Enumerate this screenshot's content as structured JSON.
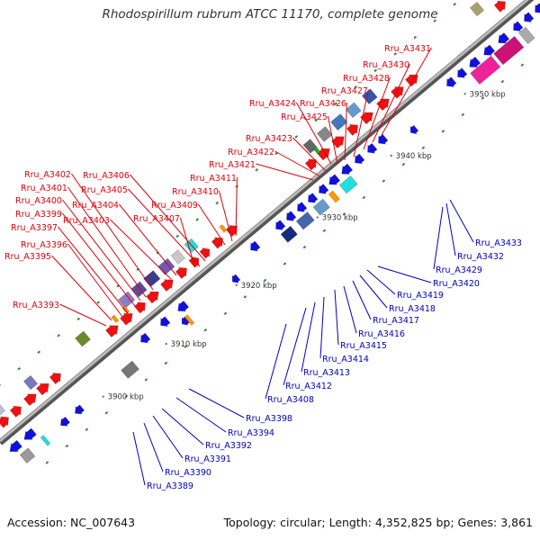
{
  "header": {
    "title": "Rhodospirillum rubrum ATCC 11170, complete genome"
  },
  "footer": {
    "accession": "Accession: NC_007643",
    "topology": "Topology: circular; Length: 4,352,825 bp; Genes: 3,861"
  },
  "colors": {
    "forward_label": "#e0000b",
    "reverse_label": "#0000c0",
    "backbone": "#888888",
    "forward_gene": "#ee1111",
    "reverse_gene": "#1111dd"
  },
  "scale_ticks": [
    "3900 kbp",
    "3910 kbp",
    "3920 kbp",
    "3930 kbp",
    "3940 kbp",
    "3950 kbp"
  ],
  "gene_labels": {
    "forward": [
      "Rru_A3431",
      "Rru_A3430",
      "Rru_A3428",
      "Rru_A3427",
      "Rru_A3424",
      "Rru_A3426",
      "Rru_A3425",
      "Rru_A3423",
      "Rru_A3422",
      "Rru_A3421",
      "Rru_A3411",
      "Rru_A3410",
      "Rru_A3409",
      "Rru_A3407",
      "Rru_A3406",
      "Rru_A3405",
      "Rru_A3404",
      "Rru_A3403",
      "Rru_A3402",
      "Rru_A3401",
      "Rru_A3400",
      "Rru_A3399",
      "Rru_A3397",
      "Rru_A3396",
      "Rru_A3395",
      "Rru_A3393"
    ],
    "reverse": [
      "Rru_A3433",
      "Rru_A3432",
      "Rru_A3429",
      "Rru_A3420",
      "Rru_A3419",
      "Rru_A3418",
      "Rru_A3417",
      "Rru_A3416",
      "Rru_A3415",
      "Rru_A3414",
      "Rru_A3413",
      "Rru_A3412",
      "Rru_A3408",
      "Rru_A3398",
      "Rru_A3394",
      "Rru_A3392",
      "Rru_A3391",
      "Rru_A3390",
      "Rru_A3389"
    ]
  }
}
